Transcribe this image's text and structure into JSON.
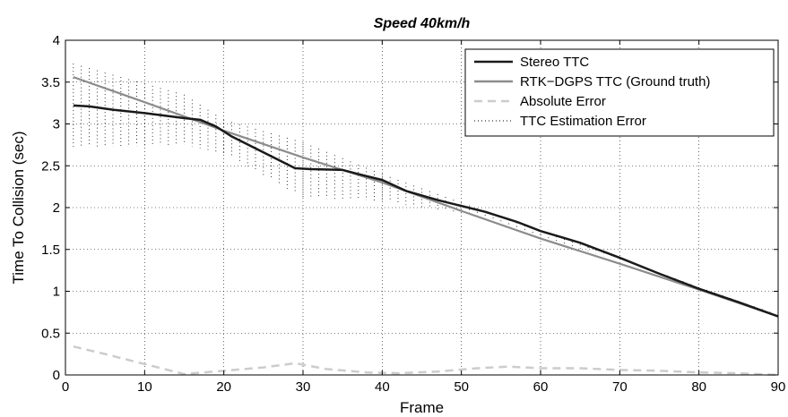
{
  "chart_data": {
    "type": "line",
    "title": "Speed 40km/h",
    "xlabel": "Frame",
    "ylabel": "Time To Collision (sec)",
    "xlim": [
      0,
      90
    ],
    "ylim": [
      0,
      4
    ],
    "xticks": [
      0,
      10,
      20,
      30,
      40,
      50,
      60,
      70,
      80,
      90
    ],
    "yticks": [
      0,
      0.5,
      1,
      1.5,
      2,
      2.5,
      3,
      3.5,
      4
    ],
    "xtick_labels": [
      "0",
      "10",
      "20",
      "30",
      "40",
      "50",
      "60",
      "70",
      "80",
      "90"
    ],
    "ytick_labels": [
      "0",
      "0.5",
      "1",
      "1.5",
      "2",
      "2.5",
      "3",
      "3.5",
      "4"
    ],
    "grid": true,
    "legend_position": "top-right",
    "series": [
      {
        "name": "Stereo TTC",
        "color": "#1a1a1a",
        "style": "solid",
        "x": [
          1,
          3,
          6,
          10,
          15,
          17,
          19,
          21,
          25,
          29,
          31,
          35,
          37,
          40,
          43,
          47,
          50,
          53,
          57,
          60,
          65,
          70,
          75,
          80,
          85,
          90
        ],
        "y": [
          3.22,
          3.21,
          3.17,
          3.13,
          3.07,
          3.05,
          2.97,
          2.85,
          2.66,
          2.47,
          2.46,
          2.45,
          2.4,
          2.33,
          2.2,
          2.09,
          2.02,
          1.95,
          1.83,
          1.72,
          1.58,
          1.4,
          1.21,
          1.03,
          0.87,
          0.7
        ]
      },
      {
        "name": "RTK−DGPS TTC (Ground truth)",
        "color": "#8c8c8c",
        "style": "solid",
        "x": [
          1,
          10,
          20,
          30,
          40,
          50,
          60,
          70,
          80,
          90
        ],
        "y": [
          3.56,
          3.26,
          2.92,
          2.6,
          2.3,
          1.96,
          1.63,
          1.33,
          1.02,
          0.7
        ]
      },
      {
        "name": "Absolute Error",
        "color": "#cccccc",
        "style": "dashed",
        "x": [
          1,
          5,
          10,
          15,
          20,
          25,
          29,
          33,
          38,
          42,
          47,
          52,
          56,
          60,
          65,
          70,
          75,
          80,
          85,
          90
        ],
        "y": [
          0.34,
          0.25,
          0.13,
          0.01,
          0.05,
          0.09,
          0.14,
          0.07,
          0.03,
          0.02,
          0.04,
          0.08,
          0.1,
          0.08,
          0.08,
          0.06,
          0.05,
          0.03,
          0.02,
          0.0
        ]
      },
      {
        "name": "TTC Estimation Error",
        "color": "#000000",
        "style": "dotted",
        "band_x": [
          1,
          15,
          20,
          30,
          40,
          50,
          60,
          70,
          80,
          90
        ],
        "band_lower": [
          2.72,
          2.75,
          2.65,
          2.12,
          2.08,
          1.93,
          1.66,
          1.36,
          1.01,
          0.68
        ],
        "band_upper": [
          3.72,
          3.35,
          3.05,
          2.78,
          2.4,
          2.06,
          1.72,
          1.4,
          1.05,
          0.72
        ]
      }
    ]
  }
}
